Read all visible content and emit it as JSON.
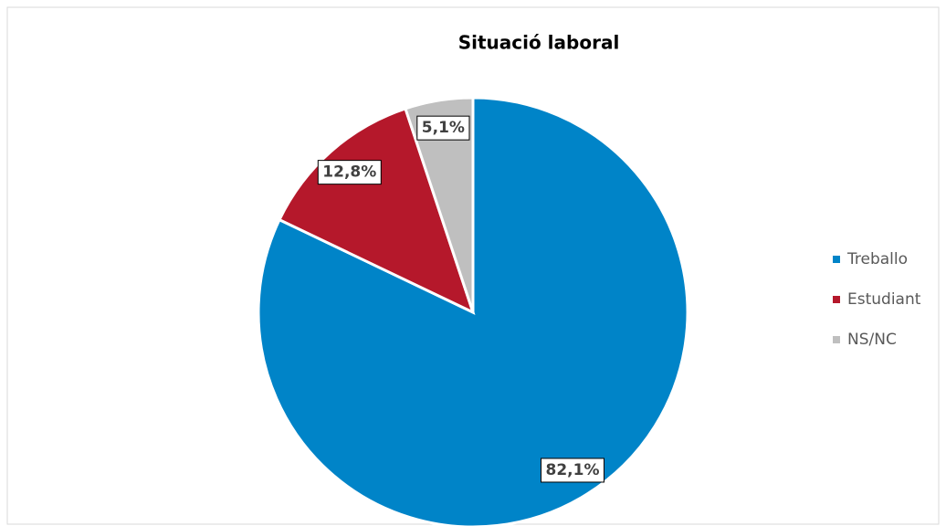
{
  "chart_data": {
    "type": "pie",
    "title": "Situació laboral",
    "categories": [
      "Treballo",
      "Estudiant",
      "NS/NC"
    ],
    "values": [
      82.1,
      12.8,
      5.1
    ],
    "value_labels": [
      "82,1%",
      "12,8%",
      "5,1%"
    ],
    "colors": [
      "#0084c8",
      "#b5182b",
      "#bfbfbf"
    ],
    "legend": "right"
  }
}
